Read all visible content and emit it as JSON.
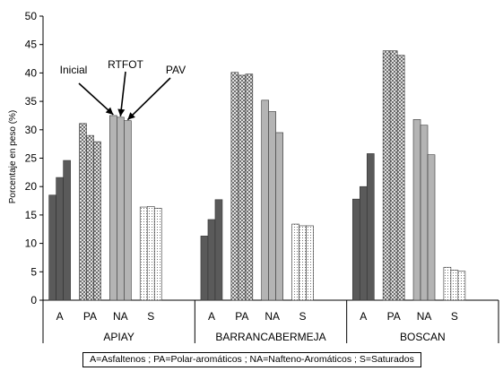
{
  "chart_data": {
    "type": "bar",
    "ylabel": "Porcentaje en peso (%)",
    "ylim": [
      0,
      50
    ],
    "ytick_step": 5,
    "yticks": [
      "0",
      "5",
      "10",
      "15",
      "20",
      "25",
      "30",
      "35",
      "40",
      "45",
      "50"
    ],
    "groups": [
      "APIAY",
      "BARRANCABERMEJA",
      "BOSCAN"
    ],
    "fractions": [
      "A",
      "PA",
      "NA",
      "S"
    ],
    "series": [
      {
        "name": "Inicial",
        "values": [
          [
            18.5,
            31.1,
            32.5,
            16.4
          ],
          [
            11.3,
            40.1,
            35.2,
            13.4
          ],
          [
            17.8,
            43.9,
            31.8,
            5.8
          ]
        ]
      },
      {
        "name": "RTFOT",
        "values": [
          [
            21.6,
            29.0,
            32.2,
            16.5
          ],
          [
            14.2,
            39.6,
            33.2,
            13.1
          ],
          [
            20.0,
            43.9,
            30.8,
            5.3
          ]
        ]
      },
      {
        "name": "PAV",
        "values": [
          [
            24.6,
            27.9,
            31.6,
            16.2
          ],
          [
            17.7,
            39.8,
            29.5,
            13.1
          ],
          [
            25.8,
            43.1,
            25.6,
            5.1
          ]
        ]
      }
    ],
    "annotations": [
      "Inicial",
      "RTFOT",
      "PAV"
    ],
    "grid": false,
    "colors": {
      "A": "#5a5a5a",
      "NA": "#b4b4b4",
      "PA_pattern": "crosshatch",
      "S_pattern": "dotted"
    }
  },
  "legend_text": "A=Asfaltenos ; PA=Polar-aromáticos ; NA=Nafteno-Aromáticos ; S=Saturados"
}
